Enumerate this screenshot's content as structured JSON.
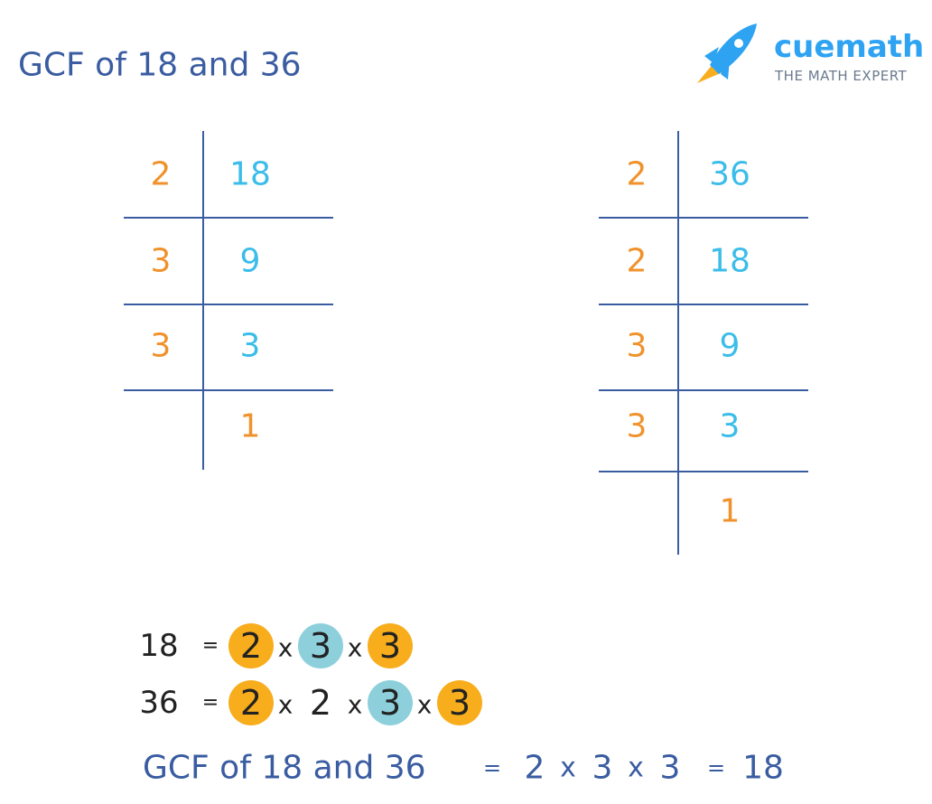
{
  "title": "GCF of 18 and 36",
  "logo": {
    "name": "cuemath",
    "tagline": "THE MATH EXPERT"
  },
  "ladders": [
    {
      "divisors": [
        2,
        3,
        3
      ],
      "quotients": [
        18,
        9,
        3,
        1
      ]
    },
    {
      "divisors": [
        2,
        2,
        3,
        3
      ],
      "quotients": [
        36,
        18,
        9,
        3,
        1
      ]
    }
  ],
  "operator": "x",
  "equals": "=",
  "factorizations": [
    {
      "number": 18,
      "factors": [
        {
          "value": 2,
          "highlight": "#f8ad1c"
        },
        {
          "value": 3,
          "highlight": "#8dd0dc"
        },
        {
          "value": 3,
          "highlight": "#f8ad1c"
        }
      ]
    },
    {
      "number": 36,
      "factors": [
        {
          "value": 2,
          "highlight": "#f8ad1c"
        },
        {
          "value": 2
        },
        {
          "value": 3,
          "highlight": "#8dd0dc"
        },
        {
          "value": 3,
          "highlight": "#f8ad1c"
        }
      ]
    }
  ],
  "result": {
    "label": "GCF of 18 and 36",
    "factors": [
      2,
      3,
      3
    ],
    "value": 18
  }
}
